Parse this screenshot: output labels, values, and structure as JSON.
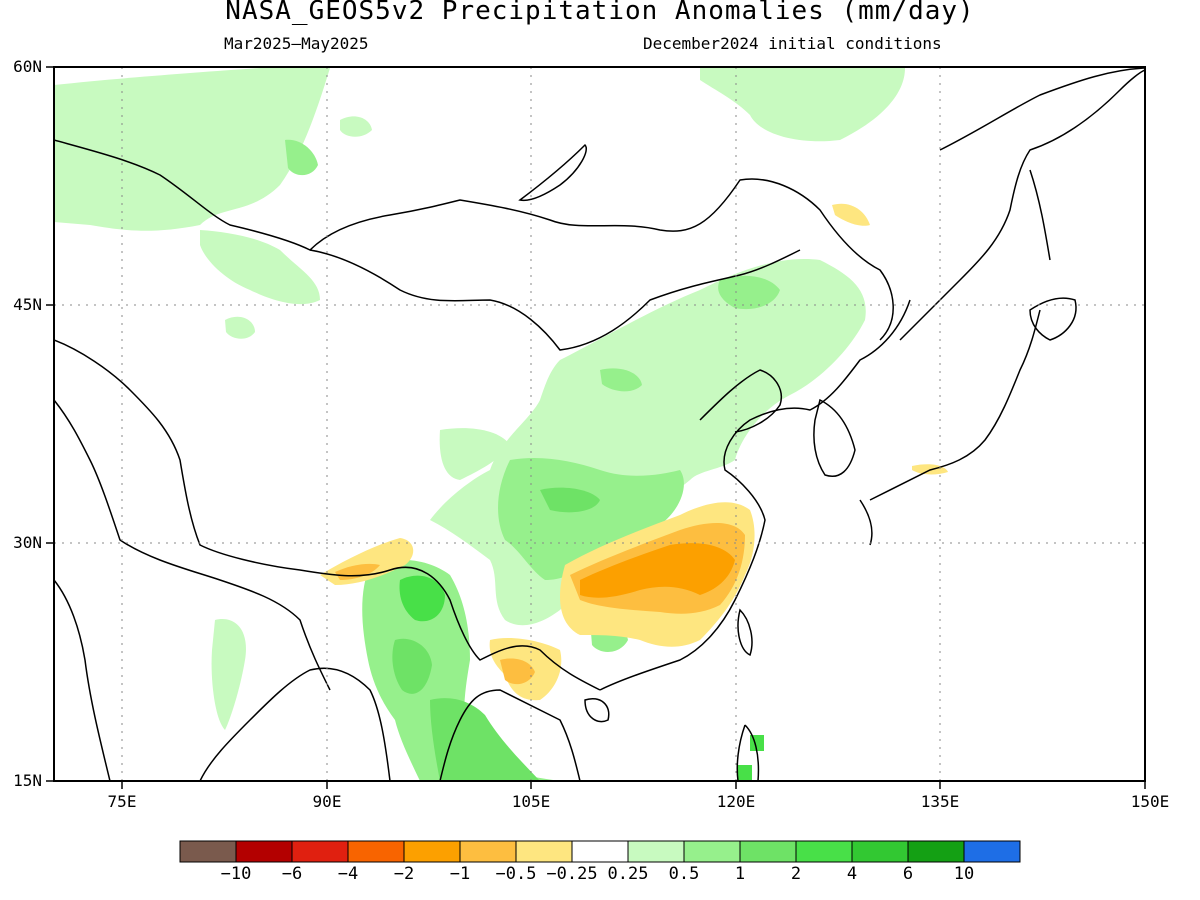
{
  "title": "NASA_GEOS5v2 Precipitation Anomalies (mm/day)",
  "subtitle_left": "Mar2025–May2025",
  "subtitle_right": "December2024 initial conditions",
  "map": {
    "lon_range": [
      70,
      150
    ],
    "lat_range": [
      15,
      60
    ],
    "lat_labels": [
      {
        "lat": 60,
        "label": "60N"
      },
      {
        "lat": 45,
        "label": "45N"
      },
      {
        "lat": 30,
        "label": "30N"
      },
      {
        "lat": 15,
        "label": "15N"
      }
    ],
    "lon_labels": [
      {
        "lon": 75,
        "label": "75E"
      },
      {
        "lon": 90,
        "label": "90E"
      },
      {
        "lon": 105,
        "label": "105E"
      },
      {
        "lon": 120,
        "label": "120E"
      },
      {
        "lon": 135,
        "label": "135E"
      },
      {
        "lon": 150,
        "label": "150E"
      }
    ],
    "gridlines": "dotted"
  },
  "colorbar": {
    "colors": [
      "#7a5a4d",
      "#b30000",
      "#e02010",
      "#f86400",
      "#fca000",
      "#fdbe40",
      "#fee680",
      "#ffffff",
      "#c8fac0",
      "#96f08c",
      "#6ee266",
      "#48e048",
      "#32c832",
      "#14a014",
      "#1e6ee6"
    ],
    "labels": [
      "−10",
      "−6",
      "−4",
      "−2",
      "−1",
      "−0.5",
      "−0.25",
      "0.25",
      "0.5",
      "1",
      "2",
      "4",
      "6",
      "10"
    ]
  }
}
